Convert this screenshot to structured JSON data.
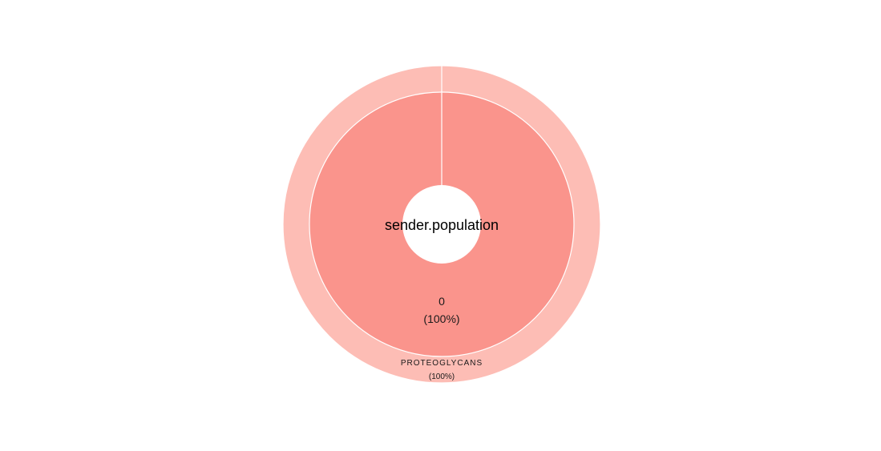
{
  "chart_data": {
    "type": "pie",
    "subtype": "sunburst",
    "center_label": "sender.population",
    "inner_ring": [
      {
        "label": "0",
        "percent_label": "(100%)",
        "value": 100,
        "color": "#fa948c"
      }
    ],
    "outer_ring": [
      {
        "label": "PROTEOGLYCANS",
        "percent_label": "(100%)",
        "value": 100,
        "color": "#fdbdb5"
      }
    ],
    "slice_border_color": "#ffffff"
  }
}
